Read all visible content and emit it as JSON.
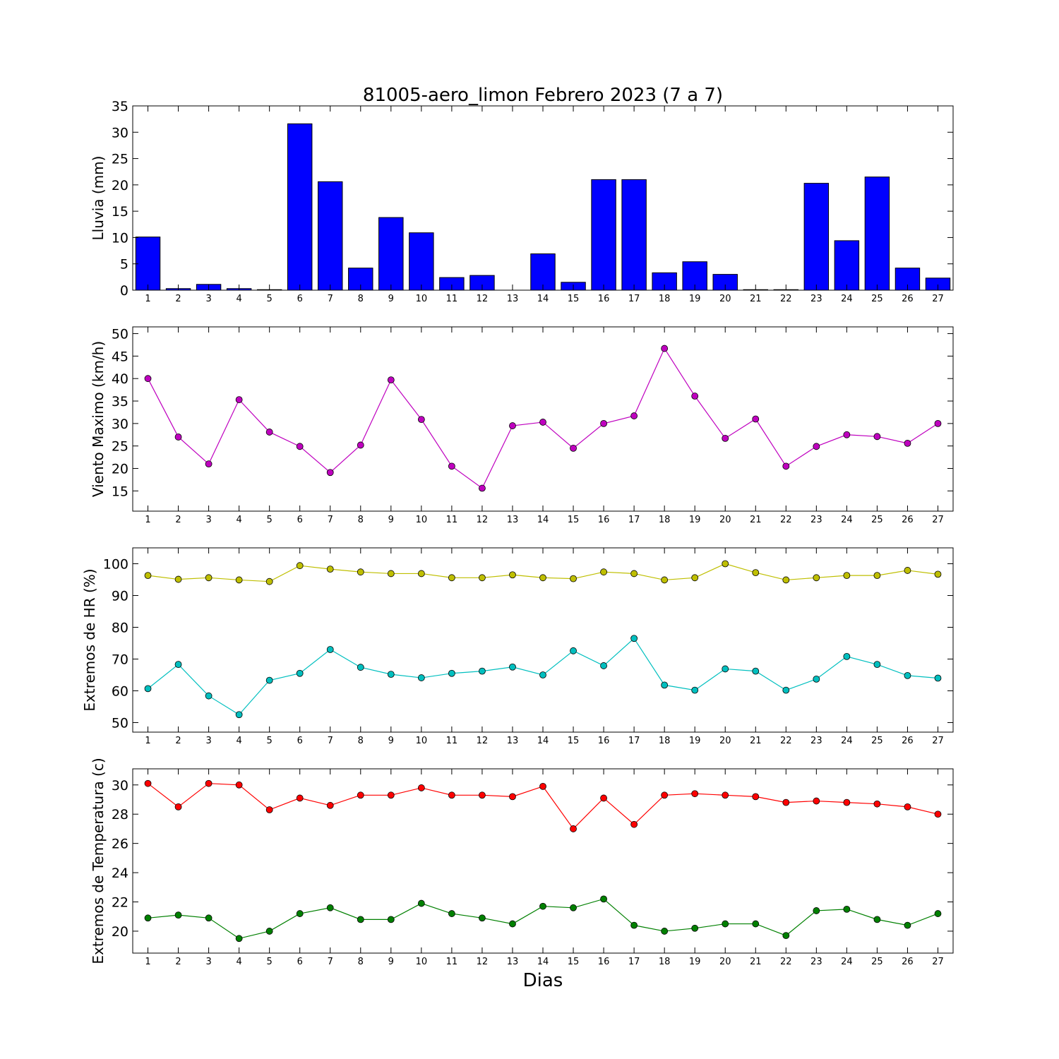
{
  "title": "81005-aero_limon Febrero 2023  (7 a 7)",
  "xlabel": "Dias",
  "chart_data": [
    {
      "type": "bar",
      "ylabel": "Lluvia (mm)",
      "ylim": [
        0,
        35
      ],
      "yticks": [
        0,
        5,
        10,
        15,
        20,
        25,
        30,
        35
      ],
      "x": [
        1,
        2,
        3,
        4,
        5,
        6,
        7,
        8,
        9,
        10,
        11,
        12,
        13,
        14,
        15,
        16,
        17,
        18,
        19,
        20,
        21,
        22,
        23,
        24,
        25,
        26,
        27
      ],
      "series": [
        {
          "color": "#0000ff",
          "values": [
            10.1,
            0.3,
            1.1,
            0.3,
            0.1,
            31.6,
            20.6,
            4.2,
            13.8,
            10.9,
            2.4,
            2.8,
            0.0,
            6.9,
            1.5,
            21.0,
            21.0,
            3.3,
            5.4,
            3.0,
            0.1,
            0.1,
            20.3,
            9.4,
            21.5,
            4.2,
            2.3
          ]
        }
      ]
    },
    {
      "type": "line",
      "ylabel": "Viento Maximo (km/h)",
      "ylim": [
        10.5,
        51.5
      ],
      "yticks": [
        15,
        20,
        25,
        30,
        35,
        40,
        45,
        50
      ],
      "x": [
        1,
        2,
        3,
        4,
        5,
        6,
        7,
        8,
        9,
        10,
        11,
        12,
        13,
        14,
        15,
        16,
        17,
        18,
        19,
        20,
        21,
        22,
        23,
        24,
        25,
        26,
        27
      ],
      "series": [
        {
          "color": "#bf00bf",
          "values": [
            40.0,
            27.0,
            21.0,
            35.3,
            28.1,
            24.9,
            19.1,
            25.2,
            39.7,
            30.9,
            20.5,
            15.6,
            29.5,
            30.3,
            24.5,
            30.0,
            31.7,
            46.7,
            36.1,
            26.7,
            31.0,
            20.5,
            24.9,
            27.5,
            27.1,
            25.6,
            30.0
          ]
        }
      ]
    },
    {
      "type": "line",
      "ylabel": "Extremos de HR (%)",
      "ylim": [
        47,
        105
      ],
      "yticks": [
        50,
        60,
        70,
        80,
        90,
        100
      ],
      "x": [
        1,
        2,
        3,
        4,
        5,
        6,
        7,
        8,
        9,
        10,
        11,
        12,
        13,
        14,
        15,
        16,
        17,
        18,
        19,
        20,
        21,
        22,
        23,
        24,
        25,
        26,
        27
      ],
      "series": [
        {
          "color": "#bfbf00",
          "values": [
            96.3,
            95.1,
            95.6,
            94.9,
            94.4,
            99.4,
            98.3,
            97.4,
            96.9,
            96.9,
            95.6,
            95.6,
            96.5,
            95.6,
            95.3,
            97.4,
            96.9,
            94.9,
            95.6,
            100.0,
            97.2,
            94.9,
            95.6,
            96.3,
            96.3,
            97.9,
            96.7
          ]
        },
        {
          "color": "#00bfbf",
          "values": [
            60.7,
            68.3,
            58.4,
            52.5,
            63.3,
            65.5,
            73.0,
            67.4,
            65.2,
            64.1,
            65.5,
            66.2,
            67.5,
            65.0,
            72.6,
            67.9,
            76.5,
            61.8,
            60.2,
            66.9,
            66.2,
            60.2,
            63.7,
            70.8,
            68.3,
            64.8,
            64.0
          ]
        }
      ]
    },
    {
      "type": "line",
      "ylabel": "Extremos de Temperatura (c)",
      "ylim": [
        18.5,
        31.1
      ],
      "yticks": [
        20,
        22,
        24,
        26,
        28,
        30
      ],
      "x": [
        1,
        2,
        3,
        4,
        5,
        6,
        7,
        8,
        9,
        10,
        11,
        12,
        13,
        14,
        15,
        16,
        17,
        18,
        19,
        20,
        21,
        22,
        23,
        24,
        25,
        26,
        27
      ],
      "series": [
        {
          "color": "#ff0000",
          "values": [
            30.1,
            28.5,
            30.1,
            30.0,
            28.3,
            29.1,
            28.6,
            29.3,
            29.3,
            29.8,
            29.3,
            29.3,
            29.2,
            29.9,
            27.0,
            29.1,
            27.3,
            29.3,
            29.4,
            29.3,
            29.2,
            28.8,
            28.9,
            28.8,
            28.7,
            28.5,
            28.0
          ]
        },
        {
          "color": "#008000",
          "values": [
            20.9,
            21.1,
            20.9,
            19.5,
            20.0,
            21.2,
            21.6,
            20.8,
            20.8,
            21.9,
            21.2,
            20.9,
            20.5,
            21.7,
            21.6,
            22.2,
            20.4,
            20.0,
            20.2,
            20.5,
            20.5,
            19.7,
            21.4,
            21.5,
            20.8,
            20.4,
            21.2
          ]
        }
      ]
    }
  ]
}
